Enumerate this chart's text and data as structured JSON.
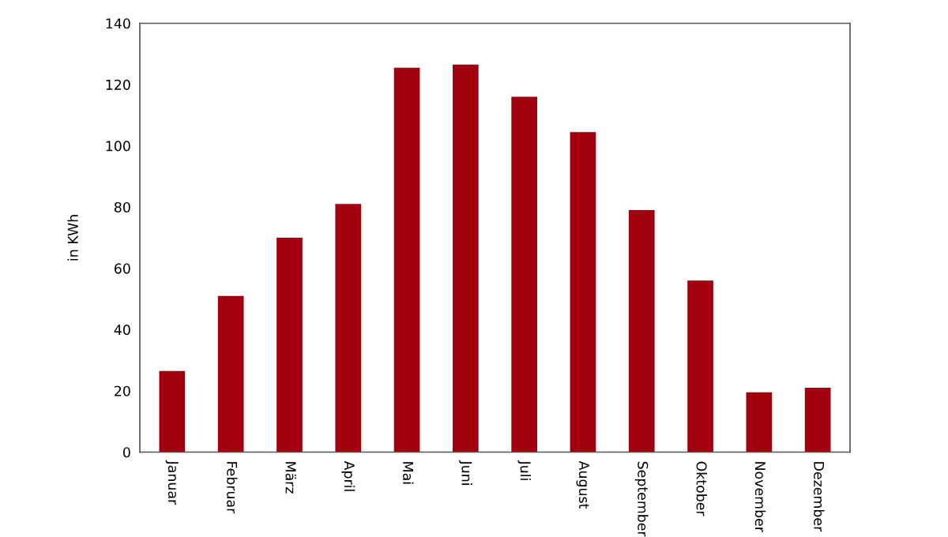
{
  "chart_data": {
    "type": "bar",
    "categories": [
      "Januar",
      "Februar",
      "März",
      "April",
      "Mai",
      "Juni",
      "Juli",
      "August",
      "September",
      "Oktober",
      "November",
      "Dezember"
    ],
    "values": [
      26.5,
      51,
      70,
      81,
      125.5,
      126.5,
      116,
      104.5,
      79,
      56,
      19.5,
      21
    ],
    "color": "#a3000f",
    "ylabel": "in KWh",
    "ylim": [
      0,
      140
    ],
    "yticks": [
      0,
      20,
      40,
      60,
      80,
      100,
      120,
      140
    ]
  }
}
